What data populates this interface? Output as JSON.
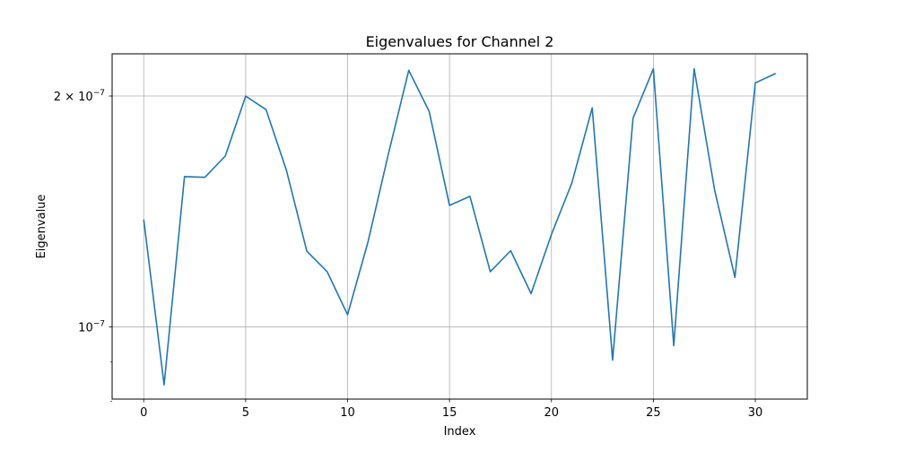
{
  "chart_data": {
    "type": "line",
    "title": "Eigenvalues for Channel 2",
    "xlabel": "Index",
    "ylabel": "Eigenvalue",
    "x_scale": "linear",
    "y_scale": "log",
    "xlim": [
      -1.55,
      32.55
    ],
    "ylim": [
      8.05e-08,
      2.27e-07
    ],
    "x_ticks": [
      0,
      5,
      10,
      15,
      20,
      25,
      30
    ],
    "x_tick_labels": [
      "0",
      "5",
      "10",
      "15",
      "20",
      "25",
      "30"
    ],
    "y_major_ticks": [
      1e-07,
      2e-07
    ],
    "y_tick_labels": [
      "10",
      "2 × 10"
    ],
    "y_tick_exponent": "−7",
    "y_minor_ticks": [
      8e-08,
      9e-08
    ],
    "grid": true,
    "line_color": "#1f77b4",
    "series": [
      {
        "x": [
          0,
          1,
          2,
          3,
          4,
          5,
          6,
          7,
          8,
          9,
          10,
          11,
          12,
          13,
          14,
          15,
          16,
          17,
          18,
          19,
          20,
          21,
          22,
          23,
          24,
          25,
          26,
          27,
          28,
          29,
          30,
          31
        ],
        "values": [
          1.38e-07,
          8.4e-08,
          1.57e-07,
          1.567e-07,
          1.67e-07,
          1.999e-07,
          1.92e-07,
          1.6e-07,
          1.255e-07,
          1.18e-07,
          1.037e-07,
          1.29e-07,
          1.68e-07,
          2.16e-07,
          1.91e-07,
          1.44e-07,
          1.48e-07,
          1.18e-07,
          1.257e-07,
          1.105e-07,
          1.32e-07,
          1.54e-07,
          1.93e-07,
          9.05e-08,
          1.87e-07,
          2.17e-07,
          9.45e-08,
          2.17e-07,
          1.51e-07,
          1.16e-07,
          2.08e-07,
          2.14e-07
        ]
      }
    ]
  }
}
